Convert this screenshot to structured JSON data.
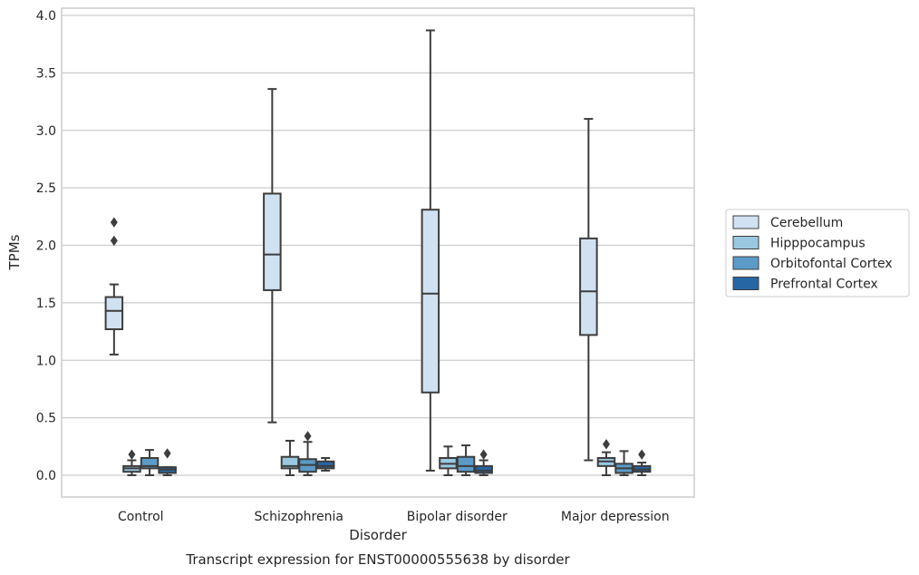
{
  "chart_data": {
    "type": "box",
    "title": "",
    "caption": "Transcript expression for ENST00000555638 by disorder",
    "xlabel": "Disorder",
    "ylabel": "TPMs",
    "ylim": [
      -0.18,
      4.06
    ],
    "yticks": [
      "0.0",
      "0.5",
      "1.0",
      "1.5",
      "2.0",
      "2.5",
      "3.0",
      "3.5",
      "4.0"
    ],
    "ytick_values": [
      0,
      0.5,
      1.0,
      1.5,
      2.0,
      2.5,
      3.0,
      3.5,
      4.0
    ],
    "grid": "horizontal",
    "legend_position": "right",
    "categories": [
      "Control",
      "Schizophrenia",
      "Bipolar disorder",
      "Major depression"
    ],
    "series": [
      {
        "name": "Cerebellum",
        "color": "#d0e1f2",
        "boxes": [
          {
            "whisker_low": 1.05,
            "q1": 1.27,
            "median": 1.43,
            "q3": 1.55,
            "whisker_high": 1.66,
            "outliers": [
              2.04,
              2.2
            ]
          },
          {
            "whisker_low": 0.46,
            "q1": 1.61,
            "median": 1.92,
            "q3": 2.45,
            "whisker_high": 3.36,
            "outliers": []
          },
          {
            "whisker_low": 0.04,
            "q1": 0.72,
            "median": 1.58,
            "q3": 2.31,
            "whisker_high": 3.87,
            "outliers": []
          },
          {
            "whisker_low": 0.13,
            "q1": 1.22,
            "median": 1.6,
            "q3": 2.06,
            "whisker_high": 3.1,
            "outliers": []
          }
        ]
      },
      {
        "name": "Hipppocampus",
        "color": "#9ac8e0",
        "boxes": [
          {
            "whisker_low": 0.0,
            "q1": 0.03,
            "median": 0.06,
            "q3": 0.08,
            "whisker_high": 0.13,
            "outliers": [
              0.18
            ]
          },
          {
            "whisker_low": 0.0,
            "q1": 0.06,
            "median": 0.08,
            "q3": 0.16,
            "whisker_high": 0.3,
            "outliers": []
          },
          {
            "whisker_low": 0.0,
            "q1": 0.06,
            "median": 0.1,
            "q3": 0.15,
            "whisker_high": 0.25,
            "outliers": []
          },
          {
            "whisker_low": 0.0,
            "q1": 0.08,
            "median": 0.12,
            "q3": 0.15,
            "whisker_high": 0.2,
            "outliers": [
              0.27
            ]
          }
        ]
      },
      {
        "name": "Orbitofontal Cortex",
        "color": "#5b9bc7",
        "boxes": [
          {
            "whisker_low": 0.0,
            "q1": 0.06,
            "median": 0.08,
            "q3": 0.15,
            "whisker_high": 0.22,
            "outliers": []
          },
          {
            "whisker_low": 0.0,
            "q1": 0.03,
            "median": 0.09,
            "q3": 0.14,
            "whisker_high": 0.29,
            "outliers": [
              0.34
            ]
          },
          {
            "whisker_low": 0.0,
            "q1": 0.03,
            "median": 0.08,
            "q3": 0.16,
            "whisker_high": 0.26,
            "outliers": []
          },
          {
            "whisker_low": 0.0,
            "q1": 0.02,
            "median": 0.06,
            "q3": 0.1,
            "whisker_high": 0.21,
            "outliers": []
          }
        ]
      },
      {
        "name": "Prefrontal Cortex",
        "color": "#2766a5",
        "boxes": [
          {
            "whisker_low": 0.0,
            "q1": 0.02,
            "median": 0.05,
            "q3": 0.07,
            "whisker_high": 0.07,
            "outliers": [
              0.19
            ]
          },
          {
            "whisker_low": 0.04,
            "q1": 0.06,
            "median": 0.08,
            "q3": 0.12,
            "whisker_high": 0.15,
            "outliers": []
          },
          {
            "whisker_low": 0.0,
            "q1": 0.02,
            "median": 0.04,
            "q3": 0.08,
            "whisker_high": 0.13,
            "outliers": [
              0.18
            ]
          },
          {
            "whisker_low": 0.0,
            "q1": 0.03,
            "median": 0.05,
            "q3": 0.08,
            "whisker_high": 0.11,
            "outliers": [
              0.18
            ]
          }
        ]
      }
    ]
  }
}
